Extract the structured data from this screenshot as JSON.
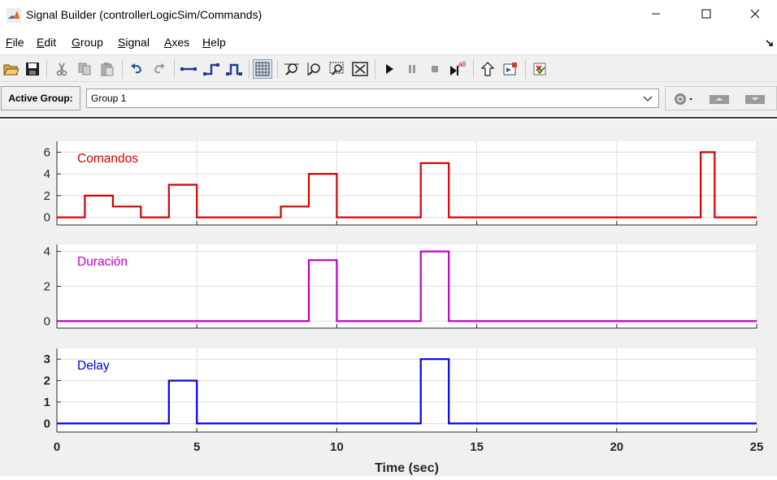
{
  "window": {
    "title": "Signal Builder (controllerLogicSim/Commands)",
    "minimize": "—",
    "maximize": "☐",
    "close": "✕"
  },
  "menu": {
    "items": [
      {
        "label": "File",
        "u": "F",
        "rest": "ile"
      },
      {
        "label": "Edit",
        "u": "E",
        "rest": "dit"
      },
      {
        "label": "Group",
        "u": "G",
        "rest": "roup"
      },
      {
        "label": "Signal",
        "u": "S",
        "rest": "ignal"
      },
      {
        "label": "Axes",
        "u": "A",
        "rest": "xes"
      },
      {
        "label": "Help",
        "u": "H",
        "rest": "elp"
      }
    ]
  },
  "toolbar": {
    "icons": [
      "open-icon",
      "save-icon",
      "cut-icon",
      "copy-icon",
      "paste-icon",
      "undo-icon",
      "redo-icon",
      "insert-segment-icon",
      "insert-step-icon",
      "insert-pulse-icon",
      "grid-icon",
      "zoom-x-icon",
      "zoom-y-icon",
      "zoom-box-icon",
      "fit-icon",
      "play-icon",
      "pause-icon",
      "stop-icon",
      "run-all-icon",
      "up-icon",
      "show-block-icon",
      "verify-icon"
    ],
    "run_all_label": "all"
  },
  "group": {
    "label": "Active Group:",
    "selected": "Group 1"
  },
  "chart_data": {
    "type": "line",
    "xlabel": "Time (sec)",
    "xlim": [
      0,
      25
    ],
    "xticks": [
      0,
      5,
      10,
      15,
      20,
      25
    ],
    "grid": true,
    "subplots": [
      {
        "name": "Comandos",
        "color": "#d40000",
        "ylim": [
          -0.7,
          7
        ],
        "yticks": [
          0,
          2,
          4,
          6
        ],
        "x": [
          0,
          1,
          1,
          2,
          2,
          3,
          3,
          4,
          4,
          5,
          5,
          8,
          8,
          9,
          9,
          10,
          10,
          13,
          13,
          14,
          14,
          23,
          23,
          23.5,
          23.5,
          25
        ],
        "y": [
          0,
          0,
          2,
          2,
          1,
          1,
          0,
          0,
          3,
          3,
          0,
          0,
          1,
          1,
          4,
          4,
          0,
          0,
          5,
          5,
          0,
          0,
          6,
          6,
          0,
          0
        ]
      },
      {
        "name": "Duración",
        "color": "#bf00bf",
        "ylim": [
          -0.4,
          4.4
        ],
        "yticks": [
          0,
          2,
          4
        ],
        "x": [
          0,
          9,
          9,
          10,
          10,
          13,
          13,
          14,
          14,
          25
        ],
        "y": [
          0,
          0,
          3.5,
          3.5,
          0,
          0,
          4,
          4,
          0,
          0
        ]
      },
      {
        "name": "Delay",
        "color": "#0000e6",
        "ylim": [
          -0.4,
          3.5
        ],
        "yticks": [
          0,
          1,
          2,
          3
        ],
        "x": [
          0,
          4,
          4,
          5,
          5,
          13,
          13,
          14,
          14,
          25
        ],
        "y": [
          0,
          0,
          2,
          2,
          0,
          0,
          3,
          3,
          0,
          0
        ]
      }
    ]
  }
}
